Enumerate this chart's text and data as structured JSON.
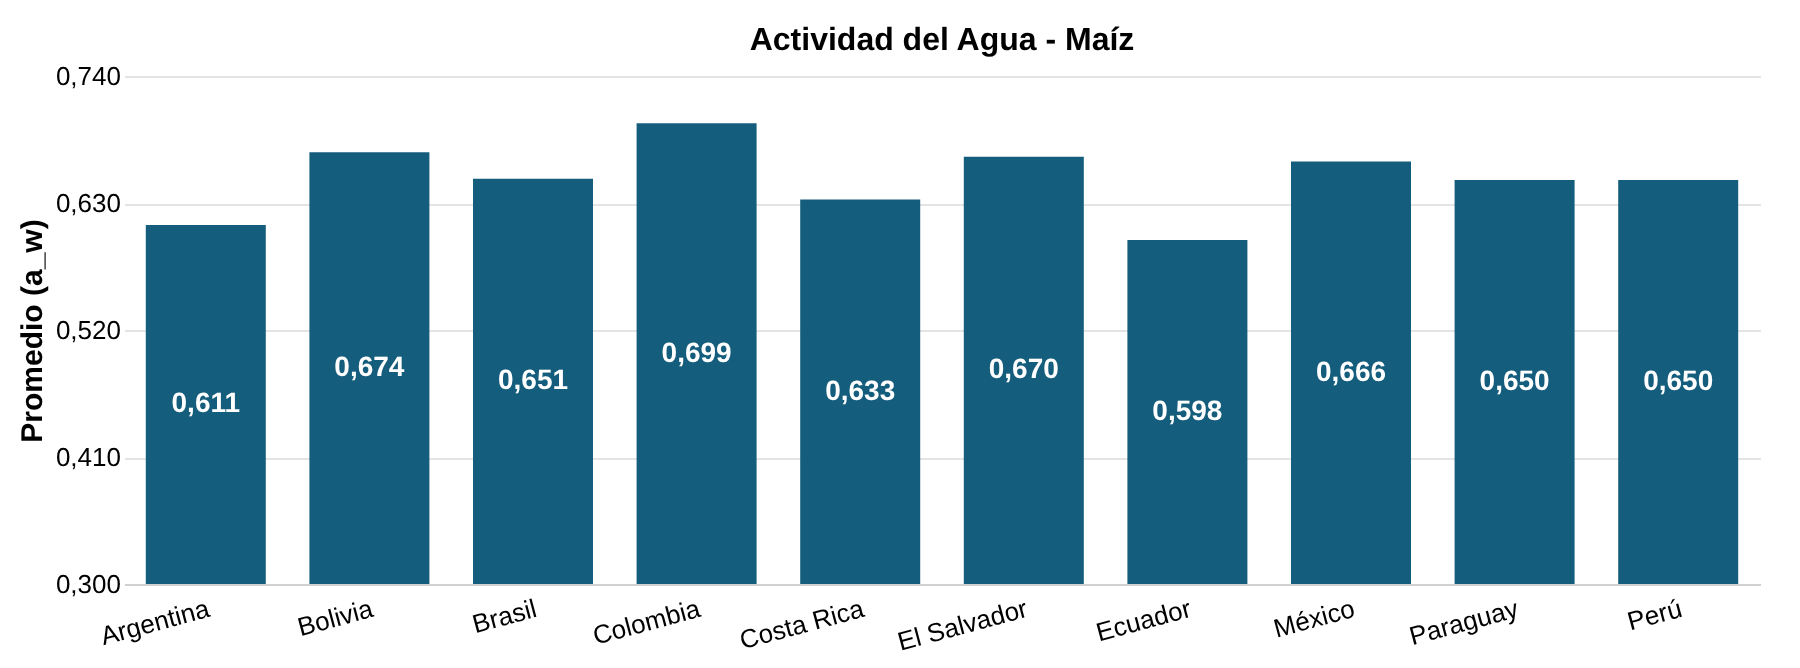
{
  "chart_data": {
    "type": "bar",
    "title": "Actividad del Agua - Maíz",
    "ylabel": "Promedio (a_w)",
    "categories": [
      "Argentina",
      "Bolivia",
      "Brasil",
      "Colombia",
      "Costa Rica",
      "El Salvador",
      "Ecuador",
      "México",
      "Paraguay",
      "Perú"
    ],
    "values": [
      0.611,
      0.674,
      0.651,
      0.699,
      0.633,
      0.67,
      0.598,
      0.666,
      0.65,
      0.65
    ],
    "value_labels": [
      "0,611",
      "0,674",
      "0,651",
      "0,699",
      "0,633",
      "0,670",
      "0,598",
      "0,666",
      "0,650",
      "0,650"
    ],
    "color": "#145d7c",
    "ylim": [
      0.3,
      0.74
    ],
    "yticks": [
      {
        "value": 0.3,
        "label": "0,300"
      },
      {
        "value": 0.41,
        "label": "0,410"
      },
      {
        "value": 0.52,
        "label": "0,520"
      },
      {
        "value": 0.63,
        "label": "0,630"
      },
      {
        "value": 0.74,
        "label": "0,740"
      }
    ],
    "grid": "y"
  }
}
